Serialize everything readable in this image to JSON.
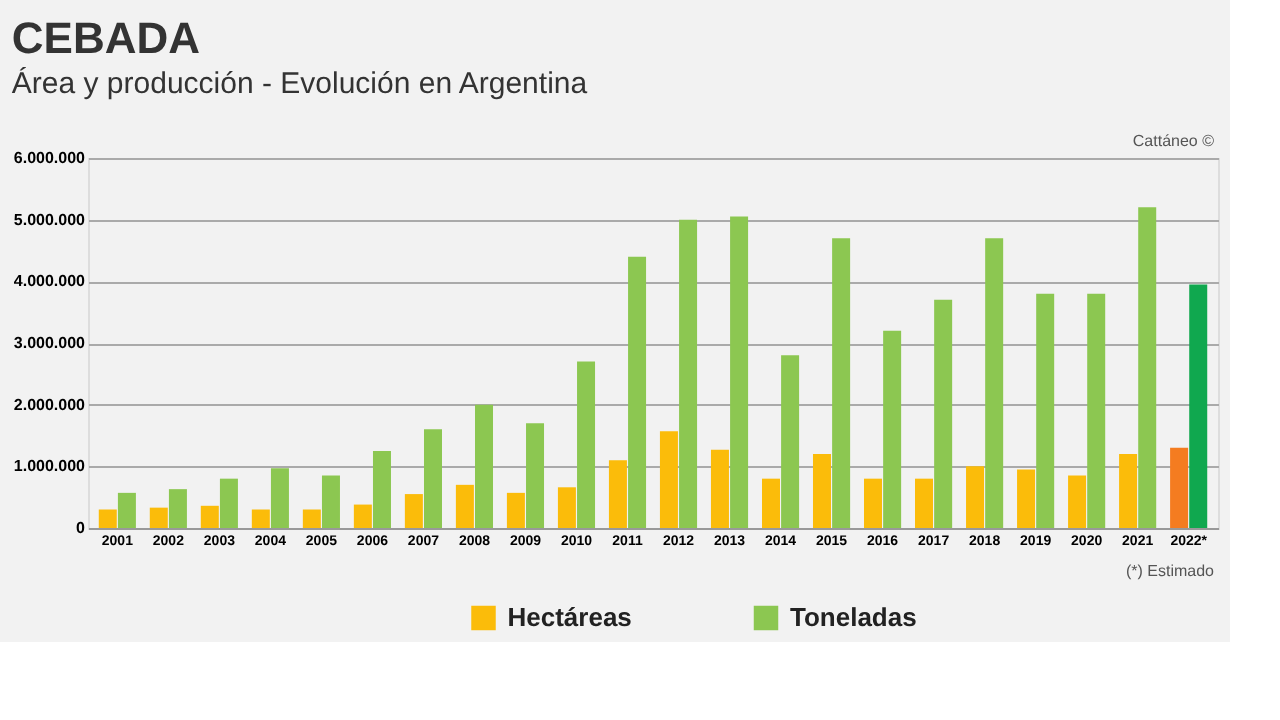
{
  "chart_data": {
    "type": "bar",
    "title": "CEBADA",
    "subtitle": "Área y producción - Evolución en Argentina",
    "categories": [
      "2001",
      "2002",
      "2003",
      "2004",
      "2005",
      "2006",
      "2007",
      "2008",
      "2009",
      "2010",
      "2011",
      "2012",
      "2013",
      "2014",
      "2015",
      "2016",
      "2017",
      "2018",
      "2019",
      "2020",
      "2021",
      "2022*"
    ],
    "series": [
      {
        "name": "Hectáreas",
        "color": "#fbbc0a",
        "colors": [
          "#fbbc0a",
          "#fbbc0a",
          "#fbbc0a",
          "#fbbc0a",
          "#fbbc0a",
          "#fbbc0a",
          "#fbbc0a",
          "#fbbc0a",
          "#fbbc0a",
          "#fbbc0a",
          "#fbbc0a",
          "#fbbc0a",
          "#fbbc0a",
          "#fbbc0a",
          "#fbbc0a",
          "#fbbc0a",
          "#fbbc0a",
          "#fbbc0a",
          "#fbbc0a",
          "#fbbc0a",
          "#fbbc0a",
          "#f47c20"
        ],
        "values": [
          300000,
          330000,
          360000,
          300000,
          300000,
          380000,
          550000,
          700000,
          570000,
          660000,
          1100000,
          1570000,
          1270000,
          800000,
          1200000,
          800000,
          800000,
          1000000,
          950000,
          850000,
          1200000,
          1300000
        ]
      },
      {
        "name": "Toneladas",
        "color": "#8cc751",
        "colors": [
          "#8cc751",
          "#8cc751",
          "#8cc751",
          "#8cc751",
          "#8cc751",
          "#8cc751",
          "#8cc751",
          "#8cc751",
          "#8cc751",
          "#8cc751",
          "#8cc751",
          "#8cc751",
          "#8cc751",
          "#8cc751",
          "#8cc751",
          "#8cc751",
          "#8cc751",
          "#8cc751",
          "#8cc751",
          "#8cc751",
          "#8cc751",
          "#10a84f"
        ],
        "values": [
          570000,
          630000,
          800000,
          970000,
          850000,
          1250000,
          1600000,
          2000000,
          1700000,
          2700000,
          4400000,
          5000000,
          5050000,
          2800000,
          4700000,
          3200000,
          3700000,
          4700000,
          3800000,
          3800000,
          5200000,
          3950000
        ]
      }
    ],
    "ylim": [
      0,
      6000000
    ],
    "yticks": [
      {
        "value": 0,
        "label": "0"
      },
      {
        "value": 1000000,
        "label": "1.000.000"
      },
      {
        "value": 2000000,
        "label": "2.000.000"
      },
      {
        "value": 3000000,
        "label": "3.000.000"
      },
      {
        "value": 4000000,
        "label": "4.000.000"
      },
      {
        "value": 5000000,
        "label": "5.000.000"
      },
      {
        "value": 6000000,
        "label": "6.000.000"
      }
    ],
    "grid": "y",
    "legend": "bottom",
    "annotations": [
      "Cattáneo ©",
      "(*) Estimado"
    ]
  }
}
